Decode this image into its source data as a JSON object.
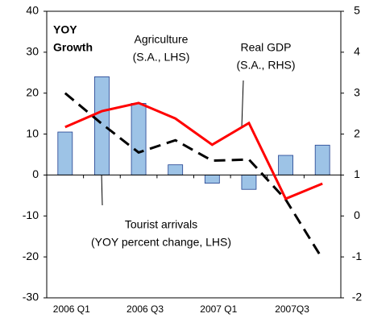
{
  "chart_data": {
    "type": "bar_line_dual_axis",
    "categories": [
      "2006 Q1",
      null,
      "2006 Q3",
      null,
      "2007 Q1",
      null,
      "2007Q3",
      null
    ],
    "series": [
      {
        "name": "Tourist arrivals (YOY percent change, LHS)",
        "type": "bar",
        "color": "#9dc3e6",
        "values": [
          10.5,
          24,
          17.5,
          2.5,
          -2,
          -3.5,
          4.8,
          7.3
        ]
      },
      {
        "name": "Agriculture (S.A., LHS)",
        "type": "line",
        "dashed": true,
        "color": "#000000",
        "values": [
          20,
          12.5,
          5.5,
          8.5,
          3.5,
          3.8,
          -6,
          -20.5
        ]
      },
      {
        "name": "Real GDP (S.A., RHS)",
        "type": "line",
        "color": "#ff0000",
        "axis": "y2",
        "values": [
          2.17,
          2.56,
          2.76,
          2.38,
          1.74,
          2.27,
          0.42,
          0.79
        ]
      }
    ],
    "ylim": [
      -30,
      40
    ],
    "yticks": [
      -30,
      -20,
      -10,
      0,
      10,
      20,
      30,
      40
    ],
    "y2lim": [
      -2,
      5
    ],
    "y2ticks": [
      -2,
      -1,
      0,
      1,
      2,
      3,
      4,
      5
    ],
    "annotations": [
      "YOY",
      "Growth",
      "Agriculture",
      "(S.A., LHS)",
      "Real GDP",
      "(S.A., RHS)",
      "Tourist arrivals",
      "(YOY percent change, LHS)"
    ]
  }
}
